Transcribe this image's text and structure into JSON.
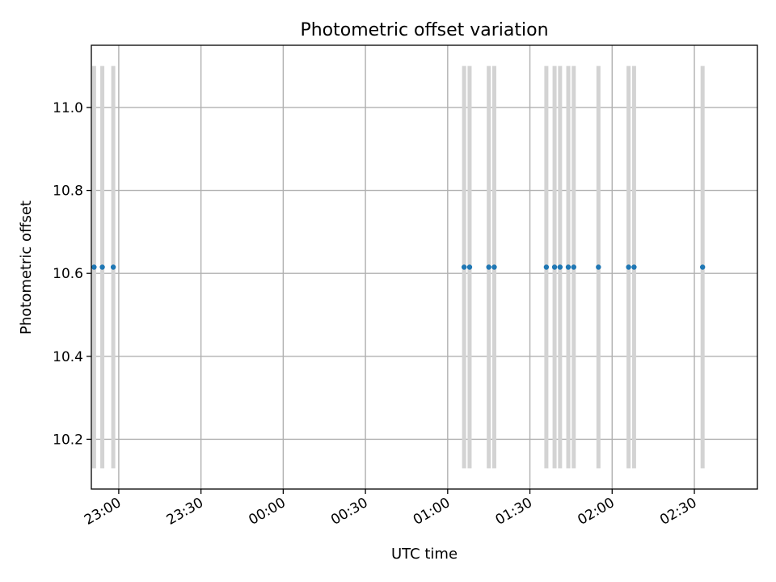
{
  "chart_data": {
    "type": "scatter",
    "title": "Photometric offset variation",
    "xlabel": "UTC time",
    "ylabel": "Photometric offset",
    "x_ticks": [
      "23:00",
      "23:30",
      "00:00",
      "00:30",
      "01:00",
      "01:30",
      "02:00",
      "02:30"
    ],
    "y_ticks": [
      "10.2",
      "10.4",
      "10.6",
      "10.8",
      "11.0"
    ],
    "xlim": [
      "22:50",
      "02:53"
    ],
    "ylim": [
      10.08,
      11.15
    ],
    "grid": true,
    "series": [
      {
        "marker_color": "#1f77b4",
        "errorbar_color": "#d3d3d3",
        "points": [
          {
            "x": "22:51",
            "y": 10.615,
            "ylow": 10.13,
            "yhigh": 11.1
          },
          {
            "x": "22:54",
            "y": 10.615,
            "ylow": 10.13,
            "yhigh": 11.1
          },
          {
            "x": "22:58",
            "y": 10.615,
            "ylow": 10.13,
            "yhigh": 11.1
          },
          {
            "x": "01:06",
            "y": 10.615,
            "ylow": 10.13,
            "yhigh": 11.1
          },
          {
            "x": "01:08",
            "y": 10.615,
            "ylow": 10.13,
            "yhigh": 11.1
          },
          {
            "x": "01:15",
            "y": 10.615,
            "ylow": 10.13,
            "yhigh": 11.1
          },
          {
            "x": "01:17",
            "y": 10.615,
            "ylow": 10.13,
            "yhigh": 11.1
          },
          {
            "x": "01:36",
            "y": 10.615,
            "ylow": 10.13,
            "yhigh": 11.1
          },
          {
            "x": "01:39",
            "y": 10.615,
            "ylow": 10.13,
            "yhigh": 11.1
          },
          {
            "x": "01:41",
            "y": 10.615,
            "ylow": 10.13,
            "yhigh": 11.1
          },
          {
            "x": "01:44",
            "y": 10.615,
            "ylow": 10.13,
            "yhigh": 11.1
          },
          {
            "x": "01:46",
            "y": 10.615,
            "ylow": 10.13,
            "yhigh": 11.1
          },
          {
            "x": "01:55",
            "y": 10.615,
            "ylow": 10.13,
            "yhigh": 11.1
          },
          {
            "x": "02:06",
            "y": 10.615,
            "ylow": 10.13,
            "yhigh": 11.1
          },
          {
            "x": "02:08",
            "y": 10.615,
            "ylow": 10.13,
            "yhigh": 11.1
          },
          {
            "x": "02:33",
            "y": 10.615,
            "ylow": 10.13,
            "yhigh": 11.1
          }
        ]
      }
    ]
  }
}
